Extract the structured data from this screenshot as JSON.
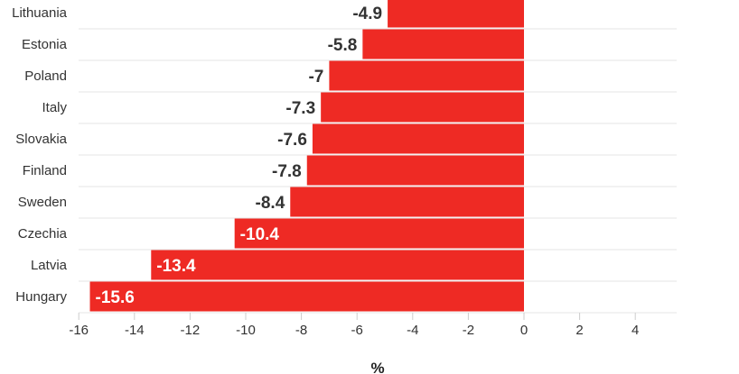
{
  "chart_data": {
    "type": "bar",
    "orientation": "horizontal",
    "categories": [
      "Lithuania",
      "Estonia",
      "Poland",
      "Italy",
      "Slovakia",
      "Finland",
      "Sweden",
      "Czechia",
      "Latvia",
      "Hungary"
    ],
    "values": [
      -4.9,
      -5.8,
      -7,
      -7.3,
      -7.6,
      -7.8,
      -8.4,
      -10.4,
      -13.4,
      -15.6
    ],
    "value_labels": [
      "-4.9",
      "-5.8",
      "-7",
      "-7.3",
      "-7.6",
      "-7.8",
      "-8.4",
      "-10.4",
      "-13.4",
      "-15.6"
    ],
    "xlabel": "%",
    "xlim": [
      -16,
      5.5
    ],
    "xticks": [
      -16,
      -14,
      -12,
      -10,
      -8,
      -6,
      -4,
      -2,
      0,
      2,
      4
    ],
    "xtick_labels": [
      "-16",
      "-14",
      "-12",
      "-10",
      "-8",
      "-6",
      "-4",
      "-2",
      "0",
      "2",
      "4"
    ],
    "grid": true,
    "bar_color": "#ee2a24"
  }
}
